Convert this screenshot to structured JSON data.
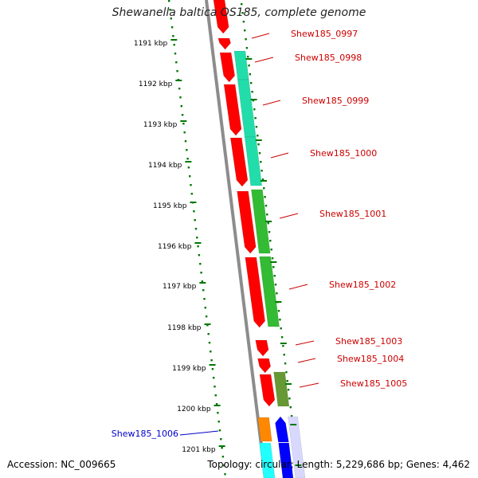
{
  "title": "Shewanella baltica OS185, complete genome",
  "accession": "Accession: NC_009665",
  "topology": "Topology: circular; Length: 5,229,686 bp; Genes: 4,462",
  "ticks": [
    "1191 kbp",
    "1192 kbp",
    "1193 kbp",
    "1194 kbp",
    "1195 kbp",
    "1196 kbp",
    "1197 kbp",
    "1198 kbp",
    "1199 kbp",
    "1200 kbp",
    "1201 kbp"
  ],
  "genes": [
    {
      "label": "Shew185_0997",
      "strand": "+",
      "color": "#ff0000"
    },
    {
      "label": "Shew185_0998",
      "strand": "+",
      "color": "#ff0000"
    },
    {
      "label": "Shew185_0999",
      "strand": "+",
      "color": "#ff0000"
    },
    {
      "label": "Shew185_1000",
      "strand": "+",
      "color": "#ff0000"
    },
    {
      "label": "Shew185_1001",
      "strand": "+",
      "color": "#ff0000"
    },
    {
      "label": "Shew185_1002",
      "strand": "+",
      "color": "#ff0000"
    },
    {
      "label": "Shew185_1003",
      "strand": "+",
      "color": "#ff0000"
    },
    {
      "label": "Shew185_1004",
      "strand": "+",
      "color": "#ff0000"
    },
    {
      "label": "Shew185_1005",
      "strand": "+",
      "color": "#ff0000"
    },
    {
      "label": "Shew185_1006",
      "strand": "-",
      "color": "#0000ff"
    }
  ],
  "colors": {
    "forward_cds": "#ff0000",
    "reverse_cds": "#0000ff",
    "cog_teal": "#22ddaa",
    "cog_green": "#33bb33",
    "cog_olive": "#669933",
    "cog_orange": "#ff8800",
    "cog_cyan": "#22ffff",
    "tick_green": "#007700",
    "backbone": "#888888",
    "forward_label": "#cc0000",
    "reverse_label": "#0000cc"
  }
}
